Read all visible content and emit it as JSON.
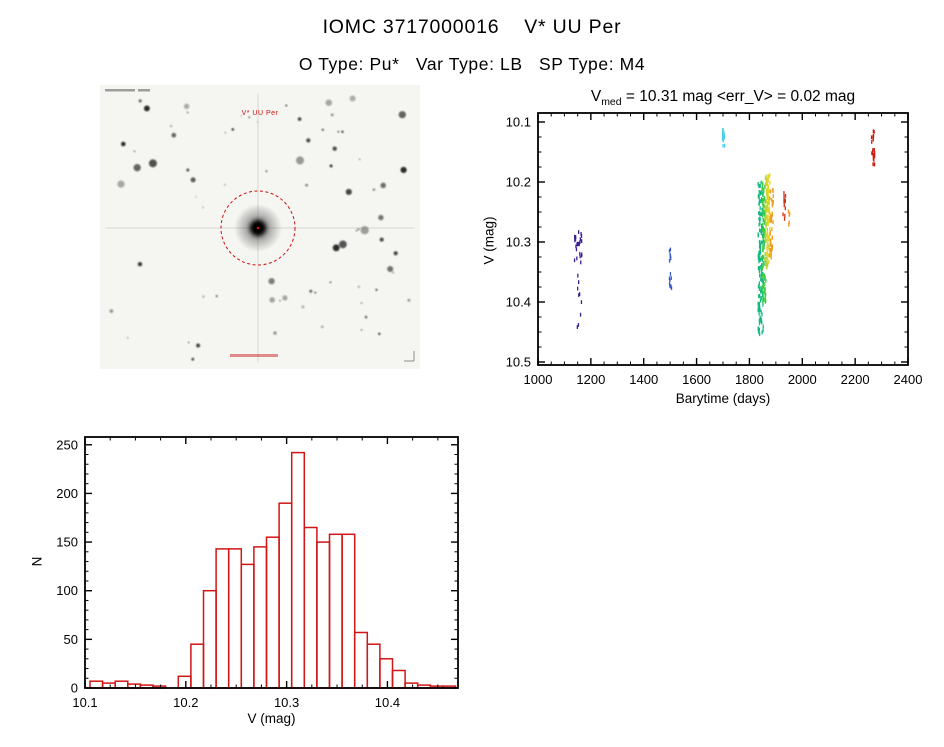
{
  "page": {
    "title": "IOMC 3717000016    V* UU Per",
    "subtitle": "O Type: Pu*   Var Type: LB   SP Type: M4"
  },
  "finding_chart": {
    "star_label": "V* UU Per"
  },
  "light_curve_title": {
    "v": "V",
    "sub": "med",
    "rest": " = 10.31 mag <err_V> = 0.02 mag"
  },
  "chart_data": [
    {
      "id": "light_curve",
      "type": "scatter",
      "title": "V_med = 10.31 mag <err_V> = 0.02 mag",
      "xlabel": "Barytime (days)",
      "ylabel": "V (mag)",
      "xlim": [
        1000,
        2400
      ],
      "ylim": [
        10.505,
        10.085
      ],
      "y_axis_inverted": true,
      "x_ticks": [
        1000,
        1200,
        1400,
        1600,
        1800,
        2000,
        2200,
        2400
      ],
      "x_tick_labels": [
        "1000",
        "1200",
        "1400",
        "1600",
        "1800",
        "2000",
        "2200",
        "2400"
      ],
      "x_minor": 50,
      "y_ticks": [
        10.1,
        10.2,
        10.3,
        10.4,
        10.5
      ],
      "y_tick_labels": [
        "10.1",
        "10.2",
        "10.3",
        "10.4",
        "10.5"
      ],
      "y_minor": 0.025,
      "clusters": [
        {
          "color": "#3b1f8e",
          "x": 1152,
          "x_spread": 14,
          "y_min": 10.283,
          "y_max": 10.335,
          "n": 26
        },
        {
          "color": "#3b1f8e",
          "x": 1158,
          "x_spread": 10,
          "y_min": 10.34,
          "y_max": 10.465,
          "n": 9
        },
        {
          "color": "#3558c8",
          "x": 1502,
          "x_spread": 5,
          "y_min": 10.308,
          "y_max": 10.385,
          "n": 16
        },
        {
          "color": "#45d0e6",
          "x": 1703,
          "x_spread": 5,
          "y_min": 10.105,
          "y_max": 10.14,
          "n": 14
        },
        {
          "color": "#12b97e",
          "x": 1843,
          "x_spread": 10,
          "y_min": 10.2,
          "y_max": 10.455,
          "n": 150
        },
        {
          "color": "#3ecb46",
          "x": 1856,
          "x_spread": 7,
          "y_min": 10.2,
          "y_max": 10.4,
          "n": 90
        },
        {
          "color": "#b8d22e",
          "x": 1865,
          "x_spread": 6,
          "y_min": 10.19,
          "y_max": 10.35,
          "n": 60
        },
        {
          "color": "#e6d51f",
          "x": 1872,
          "x_spread": 6,
          "y_min": 10.185,
          "y_max": 10.335,
          "n": 70
        },
        {
          "color": "#f09a1e",
          "x": 1884,
          "x_spread": 7,
          "y_min": 10.21,
          "y_max": 10.335,
          "n": 40
        },
        {
          "color": "#f09a1e",
          "x": 1950,
          "x_spread": 4,
          "y_min": 10.248,
          "y_max": 10.272,
          "n": 6
        },
        {
          "color": "#d03015",
          "x": 1932,
          "x_spread": 5,
          "y_min": 10.218,
          "y_max": 10.262,
          "n": 12
        },
        {
          "color": "#cc1a0e",
          "x": 2268,
          "x_spread": 6,
          "y_min": 10.115,
          "y_max": 10.172,
          "n": 22
        }
      ]
    },
    {
      "id": "v_histogram",
      "type": "histogram",
      "xlabel": "V (mag)",
      "ylabel": "N",
      "xlim": [
        10.1,
        10.47
      ],
      "ylim": [
        0,
        258
      ],
      "x_ticks": [
        10.1,
        10.2,
        10.3,
        10.4
      ],
      "x_tick_labels": [
        "10.1",
        "10.2",
        "10.3",
        "10.4"
      ],
      "x_minor": 0.025,
      "y_ticks": [
        0,
        50,
        100,
        150,
        200,
        250
      ],
      "y_tick_labels": [
        "0",
        "50",
        "100",
        "150",
        "200",
        "250"
      ],
      "y_minor": 10,
      "bin_start": 10.105,
      "bin_width": 0.0125,
      "counts": [
        7,
        5,
        7,
        4,
        3,
        2,
        0,
        12,
        45,
        100,
        143,
        143,
        127,
        145,
        155,
        190,
        242,
        165,
        150,
        158,
        158,
        57,
        45,
        30,
        18,
        5,
        3,
        2,
        2
      ],
      "color": "#d21515"
    }
  ]
}
